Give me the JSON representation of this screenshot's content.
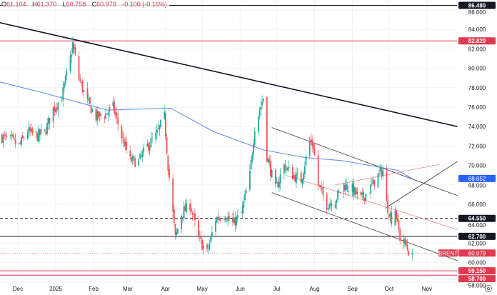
{
  "header": {
    "open_label": "O",
    "open": "61.104",
    "high_label": "H",
    "high": "61.370",
    "low_label": "L",
    "low": "60.758",
    "close_label": "C",
    "close": "60.979",
    "change": "-0.100 (-0.16%)"
  },
  "colors": {
    "up": "#26a69a",
    "down": "#ef5350",
    "ma": "#5b8def",
    "level_red": "#e0394f",
    "level_black": "#131722",
    "grid": "#f0f3fa"
  },
  "chart_data": {
    "type": "candlestick",
    "symbol": "BRENT",
    "x_ticks": [
      {
        "date": "2024-12-01",
        "label": "Dec"
      },
      {
        "date": "2025-01-01",
        "label": "2025"
      },
      {
        "date": "2025-02-01",
        "label": "Feb"
      },
      {
        "date": "2025-03-01",
        "label": "Mar"
      },
      {
        "date": "2025-04-01",
        "label": "Apr"
      },
      {
        "date": "2025-05-01",
        "label": "May"
      },
      {
        "date": "2025-06-01",
        "label": "Jun"
      },
      {
        "date": "2025-07-01",
        "label": "Jul"
      },
      {
        "date": "2025-08-01",
        "label": "Aug"
      },
      {
        "date": "2025-09-01",
        "label": "Sep"
      },
      {
        "date": "2025-10-01",
        "label": "Oct"
      },
      {
        "date": "2025-11-01",
        "label": "Nov"
      }
    ],
    "y_ticks": [
      "58.000",
      "60.000",
      "62.000",
      "64.000",
      "66.000",
      "68.000",
      "70.000",
      "72.000",
      "74.000",
      "76.000",
      "78.000",
      "80.000",
      "82.000",
      "84.000",
      "86.000"
    ],
    "ylim": [
      57.6,
      87.0
    ],
    "grid": true,
    "price_path": [
      [
        "2024-11-16",
        73.0
      ],
      [
        "2024-11-25",
        72.6
      ],
      [
        "2024-12-02",
        72.0
      ],
      [
        "2024-12-09",
        73.5
      ],
      [
        "2024-12-16",
        73.0
      ],
      [
        "2024-12-23",
        73.4
      ],
      [
        "2024-12-30",
        75.8
      ],
      [
        "2025-01-06",
        77.0
      ],
      [
        "2025-01-13",
        81.0
      ],
      [
        "2025-01-15",
        82.5
      ],
      [
        "2025-01-20",
        79.0
      ],
      [
        "2025-01-27",
        76.5
      ],
      [
        "2025-02-03",
        75.0
      ],
      [
        "2025-02-10",
        75.2
      ],
      [
        "2025-02-17",
        76.0
      ],
      [
        "2025-02-24",
        73.0
      ],
      [
        "2025-03-03",
        70.5
      ],
      [
        "2025-03-10",
        70.4
      ],
      [
        "2025-03-17",
        72.0
      ],
      [
        "2025-03-24",
        73.0
      ],
      [
        "2025-03-31",
        75.0
      ],
      [
        "2025-04-03",
        70.0
      ],
      [
        "2025-04-07",
        65.0
      ],
      [
        "2025-04-09",
        62.5
      ],
      [
        "2025-04-14",
        65.0
      ],
      [
        "2025-04-21",
        66.0
      ],
      [
        "2025-04-28",
        62.5
      ],
      [
        "2025-05-05",
        61.0
      ],
      [
        "2025-05-12",
        64.5
      ],
      [
        "2025-05-19",
        65.0
      ],
      [
        "2025-05-26",
        64.0
      ],
      [
        "2025-06-02",
        65.0
      ],
      [
        "2025-06-09",
        69.0
      ],
      [
        "2025-06-13",
        74.0
      ],
      [
        "2025-06-20",
        77.0
      ],
      [
        "2025-06-23",
        71.0
      ],
      [
        "2025-06-30",
        67.5
      ],
      [
        "2025-07-07",
        70.0
      ],
      [
        "2025-07-14",
        69.0
      ],
      [
        "2025-07-21",
        68.5
      ],
      [
        "2025-07-28",
        72.5
      ],
      [
        "2025-07-31",
        72.0
      ],
      [
        "2025-08-04",
        68.0
      ],
      [
        "2025-08-11",
        66.0
      ],
      [
        "2025-08-18",
        66.5
      ],
      [
        "2025-08-25",
        68.0
      ],
      [
        "2025-09-01",
        67.5
      ],
      [
        "2025-09-08",
        66.5
      ],
      [
        "2025-09-15",
        67.5
      ],
      [
        "2025-09-22",
        69.0
      ],
      [
        "2025-09-26",
        69.5
      ],
      [
        "2025-09-29",
        66.0
      ],
      [
        "2025-10-03",
        64.5
      ],
      [
        "2025-10-06",
        65.5
      ],
      [
        "2025-10-10",
        62.5
      ],
      [
        "2025-10-14",
        62.0
      ],
      [
        "2025-10-17",
        61.2
      ],
      [
        "2025-10-20",
        60.979
      ]
    ],
    "moving_average": [
      [
        "2024-11-16",
        78.6
      ],
      [
        "2024-12-21",
        77.5
      ],
      [
        "2025-02-12",
        75.7
      ],
      [
        "2025-04-05",
        75.9
      ],
      [
        "2025-05-10",
        73.5
      ],
      [
        "2025-06-20",
        71.6
      ],
      [
        "2025-07-25",
        70.8
      ],
      [
        "2025-08-23",
        70.5
      ],
      [
        "2025-09-15",
        70.0
      ],
      [
        "2025-10-08",
        69.5
      ],
      [
        "2025-10-20",
        68.652
      ]
    ],
    "horizontal_levels": [
      {
        "label": "86.480",
        "value": 86.48,
        "color": "#131722",
        "style": "solid"
      },
      {
        "label": "82.820",
        "value": 82.82,
        "color": "#e0394f",
        "style": "solid"
      },
      {
        "label": "64.550",
        "value": 64.55,
        "color": "#131722",
        "style": "dashed"
      },
      {
        "label": "62.700",
        "value": 62.7,
        "color": "#131722",
        "style": "solid"
      },
      {
        "label": "59.150",
        "value": 59.15,
        "color": "#e0394f",
        "style": "solid"
      },
      {
        "label": "58.700",
        "value": 58.7,
        "color": "#e0394f",
        "style": "solid"
      }
    ],
    "ma_label": {
      "label": "68.652",
      "value": 68.652,
      "color": "#2962ff"
    },
    "price_label": {
      "symbol": "BRENT",
      "label": "60.979",
      "value": 60.979,
      "color": "#e0394f"
    },
    "trendlines": [
      {
        "from": [
          "2024-11-16",
          84.7
        ],
        "to": [
          "2025-11-26",
          74.0
        ],
        "color": "#131722",
        "width": 1.6
      },
      {
        "from": [
          "2025-06-27",
          73.9
        ],
        "to": [
          "2025-11-26",
          66.9
        ],
        "color": "#444",
        "width": 0.9
      },
      {
        "from": [
          "2025-06-27",
          67.2
        ],
        "to": [
          "2025-11-26",
          60.2
        ],
        "color": "#444",
        "width": 0.9
      },
      {
        "from": [
          "2025-09-28",
          65.6
        ],
        "to": [
          "2025-11-26",
          70.4
        ],
        "color": "#444",
        "width": 0.9
      },
      {
        "from": [
          "2025-07-08",
          69.0
        ],
        "to": [
          "2025-11-26",
          63.4
        ],
        "color": "#f08a8a",
        "width": 0.8
      },
      {
        "from": [
          "2025-08-18",
          68.0
        ],
        "to": [
          "2025-11-11",
          70.1
        ],
        "color": "#f08a8a",
        "width": 0.8
      }
    ]
  }
}
